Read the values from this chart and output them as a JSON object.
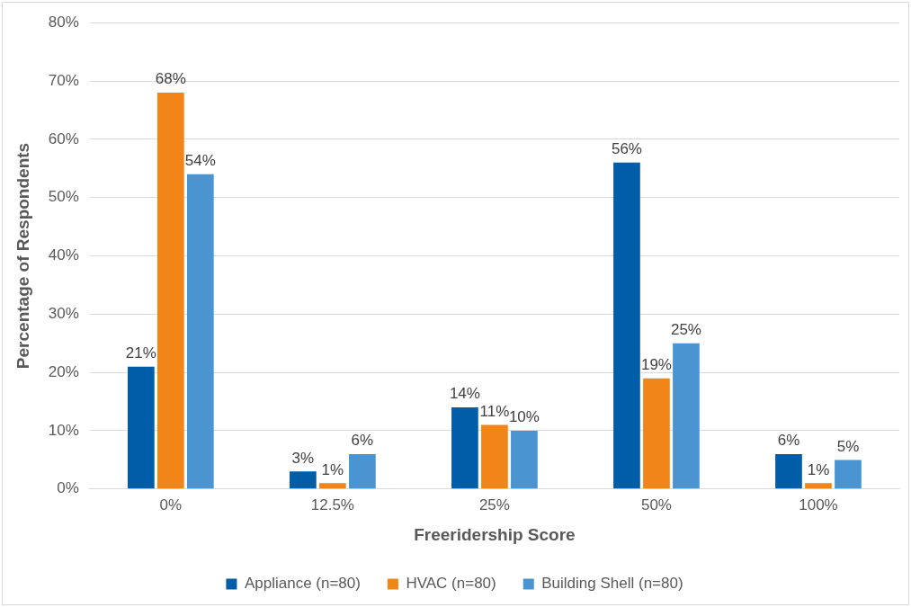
{
  "chart_data": {
    "type": "bar",
    "xlabel": "Freeridership Score",
    "ylabel": "Percentage of Respondents",
    "categories": [
      "0%",
      "12.5%",
      "25%",
      "50%",
      "100%"
    ],
    "series": [
      {
        "name": "Appliance (n=80)",
        "color": "#005ea8",
        "values": [
          21,
          3,
          14,
          56,
          6
        ],
        "value_labels": [
          "21%",
          "3%",
          "14%",
          "56%",
          "6%"
        ]
      },
      {
        "name": "HVAC (n=80)",
        "color": "#f28518",
        "values": [
          68,
          1,
          11,
          19,
          1
        ],
        "value_labels": [
          "68%",
          "1%",
          "11%",
          "19%",
          "1%"
        ]
      },
      {
        "name": "Building Shell (n=80)",
        "color": "#4b94d2",
        "values": [
          54,
          6,
          10,
          25,
          5
        ],
        "value_labels": [
          "54%",
          "6%",
          "10%",
          "25%",
          "5%"
        ]
      }
    ],
    "ylim": [
      0,
      80
    ],
    "yticks": [
      {
        "value": 0,
        "label": "0%"
      },
      {
        "value": 10,
        "label": "10%"
      },
      {
        "value": 20,
        "label": "20%"
      },
      {
        "value": 30,
        "label": "30%"
      },
      {
        "value": 40,
        "label": "40%"
      },
      {
        "value": 50,
        "label": "50%"
      },
      {
        "value": 60,
        "label": "60%"
      },
      {
        "value": 70,
        "label": "70%"
      },
      {
        "value": 80,
        "label": "80%"
      }
    ],
    "grid": "y",
    "legend": "bottom"
  }
}
